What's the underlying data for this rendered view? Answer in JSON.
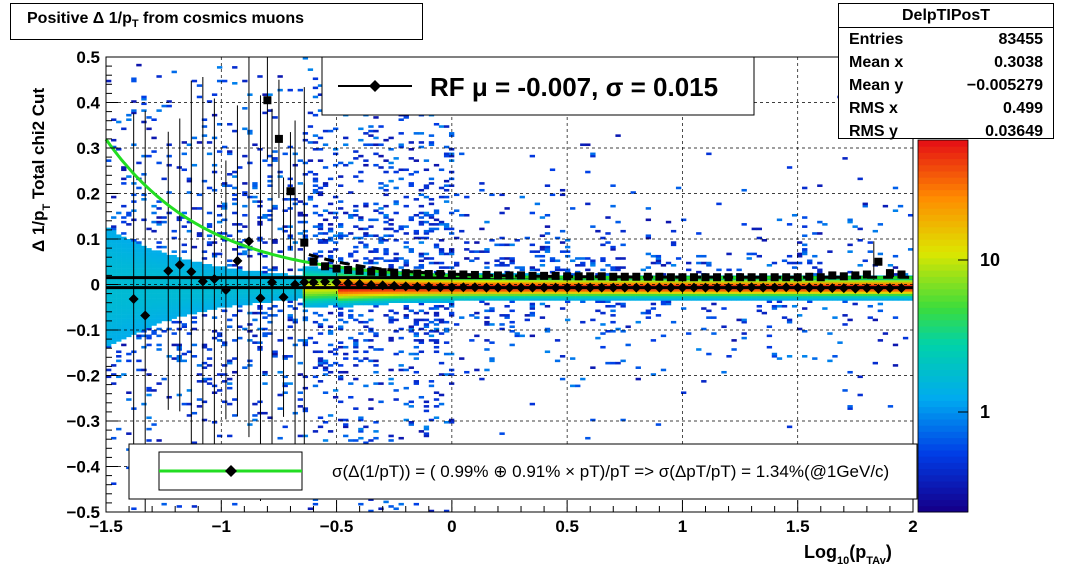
{
  "title": {
    "text": "Positive Δ 1/p",
    "sub": "T",
    "suffix": " from cosmics muons"
  },
  "stats": {
    "name": "DelpTIPosT",
    "rows": [
      {
        "label": "Entries",
        "value": "83455"
      },
      {
        "label": "Mean x",
        "value": "0.3038"
      },
      {
        "label": "Mean y",
        "value": "−0.005279"
      },
      {
        "label": "RMS x",
        "value": "0.499"
      },
      {
        "label": "RMS y",
        "value": "0.03649"
      }
    ]
  },
  "legend_top": {
    "text": "RF μ = -0.007, σ =   0.015"
  },
  "legend_bottom": {
    "text": "σ(Δ(1/pT)) = ( 0.99% ⊕  0.91% × pT)/pT => σ(ΔpT/pT) =  1.34%(@1GeV/c)"
  },
  "colorbar": {
    "labels": [
      "10",
      "1"
    ]
  },
  "colors": {
    "fit_curve": "#22dd22",
    "markers": "#000000"
  },
  "chart_data": {
    "type": "heatmap",
    "xlabel": {
      "main": "Log",
      "sub1": "10",
      "mid": "(p",
      "sub2": "TAv",
      "end": ")"
    },
    "ylabel": {
      "main": "Δ  1/p",
      "sub": "T",
      "suffix": "  Total chi2 Cut"
    },
    "xlim": [
      -1.5,
      2
    ],
    "ylim": [
      -0.5,
      0.5
    ],
    "x_ticks": [
      "−1.5",
      "−1",
      "−0.5",
      "0",
      "0.5",
      "1",
      "1.5",
      "2"
    ],
    "y_ticks": [
      "0.5",
      "0.4",
      "0.3",
      "0.2",
      "0.1",
      "0",
      "−0.1",
      "−0.2",
      "−0.3",
      "−0.4",
      "−0.5"
    ],
    "grid": true,
    "mean_points": [
      [
        -1.38,
        -0.032
      ],
      [
        -1.33,
        -0.068
      ],
      [
        -1.23,
        0.03
      ],
      [
        -1.18,
        0.043
      ],
      [
        -1.13,
        0.028
      ],
      [
        -1.08,
        0.007
      ],
      [
        -1.03,
        0.012
      ],
      [
        -0.98,
        -0.012
      ],
      [
        -0.93,
        0.052
      ],
      [
        -0.88,
        0.095
      ],
      [
        -0.83,
        -0.03
      ],
      [
        -0.78,
        0.005
      ],
      [
        -0.73,
        -0.028
      ],
      [
        -0.68,
        0.0
      ],
      [
        -0.64,
        0.005
      ],
      [
        -0.6,
        0.005
      ],
      [
        -0.55,
        0.006
      ],
      [
        -0.5,
        0.005
      ],
      [
        -0.45,
        0.003
      ],
      [
        -0.4,
        0.001
      ],
      [
        -0.35,
        -0.001
      ],
      [
        -0.3,
        -0.002
      ],
      [
        -0.25,
        -0.003
      ],
      [
        -0.2,
        -0.004
      ],
      [
        -0.15,
        -0.005
      ],
      [
        -0.1,
        -0.005
      ],
      [
        -0.05,
        -0.006
      ],
      [
        0,
        -0.006
      ],
      [
        0.05,
        -0.006
      ],
      [
        0.1,
        -0.006
      ],
      [
        0.15,
        -0.007
      ],
      [
        0.2,
        -0.007
      ],
      [
        0.25,
        -0.007
      ],
      [
        0.3,
        -0.007
      ],
      [
        0.35,
        -0.007
      ],
      [
        0.4,
        -0.007
      ],
      [
        0.45,
        -0.007
      ],
      [
        0.5,
        -0.007
      ],
      [
        0.55,
        -0.007
      ],
      [
        0.6,
        -0.007
      ],
      [
        0.65,
        -0.007
      ],
      [
        0.7,
        -0.007
      ],
      [
        0.75,
        -0.007
      ],
      [
        0.8,
        -0.007
      ],
      [
        0.85,
        -0.007
      ],
      [
        0.9,
        -0.007
      ],
      [
        0.95,
        -0.007
      ],
      [
        1.0,
        -0.007
      ],
      [
        1.05,
        -0.007
      ],
      [
        1.1,
        -0.007
      ],
      [
        1.15,
        -0.007
      ],
      [
        1.2,
        -0.007
      ],
      [
        1.25,
        -0.007
      ],
      [
        1.3,
        -0.006
      ],
      [
        1.35,
        -0.007
      ],
      [
        1.4,
        -0.007
      ],
      [
        1.45,
        -0.006
      ],
      [
        1.5,
        -0.007
      ],
      [
        1.55,
        -0.007
      ],
      [
        1.6,
        -0.008
      ],
      [
        1.65,
        -0.008
      ],
      [
        1.7,
        -0.008
      ],
      [
        1.75,
        -0.009
      ],
      [
        1.8,
        -0.008
      ],
      [
        1.85,
        -0.01
      ],
      [
        1.9,
        -0.008
      ],
      [
        1.95,
        -0.008
      ]
    ],
    "sigma_points": [
      [
        -0.8,
        0.405
      ],
      [
        -0.75,
        0.32
      ],
      [
        -0.7,
        0.205
      ],
      [
        -0.64,
        0.092
      ],
      [
        -0.6,
        0.05
      ],
      [
        -0.55,
        0.04
      ],
      [
        -0.5,
        0.035
      ],
      [
        -0.45,
        0.032
      ],
      [
        -0.4,
        0.03
      ],
      [
        -0.35,
        0.028
      ],
      [
        -0.3,
        0.027
      ],
      [
        -0.25,
        0.026
      ],
      [
        -0.2,
        0.025
      ],
      [
        -0.15,
        0.024
      ],
      [
        -0.1,
        0.023
      ],
      [
        -0.05,
        0.023
      ],
      [
        0,
        0.022
      ],
      [
        0.05,
        0.022
      ],
      [
        0.1,
        0.021
      ],
      [
        0.15,
        0.021
      ],
      [
        0.2,
        0.02
      ],
      [
        0.25,
        0.02
      ],
      [
        0.3,
        0.02
      ],
      [
        0.35,
        0.019
      ],
      [
        0.4,
        0.019
      ],
      [
        0.45,
        0.019
      ],
      [
        0.5,
        0.018
      ],
      [
        0.55,
        0.018
      ],
      [
        0.6,
        0.018
      ],
      [
        0.65,
        0.018
      ],
      [
        0.7,
        0.017
      ],
      [
        0.75,
        0.017
      ],
      [
        0.8,
        0.017
      ],
      [
        0.85,
        0.017
      ],
      [
        0.9,
        0.017
      ],
      [
        0.95,
        0.016
      ],
      [
        1.0,
        0.016
      ],
      [
        1.05,
        0.016
      ],
      [
        1.1,
        0.016
      ],
      [
        1.15,
        0.016
      ],
      [
        1.2,
        0.016
      ],
      [
        1.25,
        0.016
      ],
      [
        1.3,
        0.016
      ],
      [
        1.35,
        0.016
      ],
      [
        1.4,
        0.016
      ],
      [
        1.45,
        0.016
      ],
      [
        1.5,
        0.016
      ],
      [
        1.55,
        0.017
      ],
      [
        1.6,
        0.016
      ],
      [
        1.65,
        0.02
      ],
      [
        1.7,
        0.018
      ],
      [
        1.75,
        0.02
      ],
      [
        1.8,
        0.022
      ],
      [
        1.85,
        0.05
      ],
      [
        1.9,
        0.025
      ],
      [
        1.95,
        0.022
      ]
    ],
    "fit_lines": {
      "mean": -0.007,
      "upper": 0.015
    }
  }
}
